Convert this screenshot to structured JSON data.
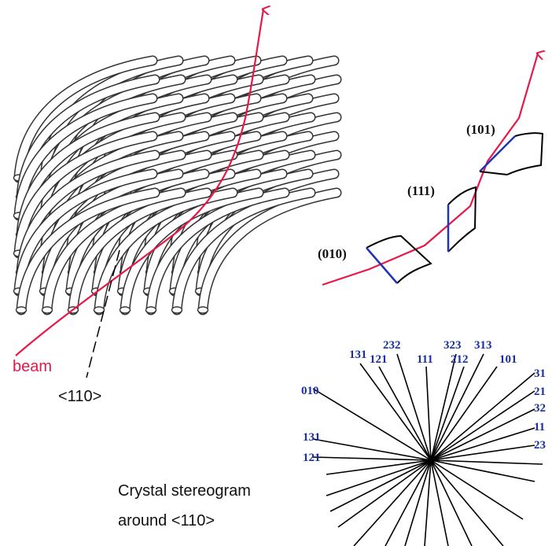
{
  "labels": {
    "beam": "beam",
    "axis": "<110>"
  },
  "planes": [
    "(010)",
    "(111)",
    "(101)"
  ],
  "stereogram": {
    "top": [
      "131",
      "121",
      "232",
      "111",
      "323",
      "212",
      "313",
      "101"
    ],
    "left": [
      "010",
      "131",
      "121"
    ],
    "right": [
      "31",
      "21",
      "32",
      "11",
      "23"
    ]
  },
  "caption": [
    "Crystal stereogram",
    "around <110>"
  ]
}
